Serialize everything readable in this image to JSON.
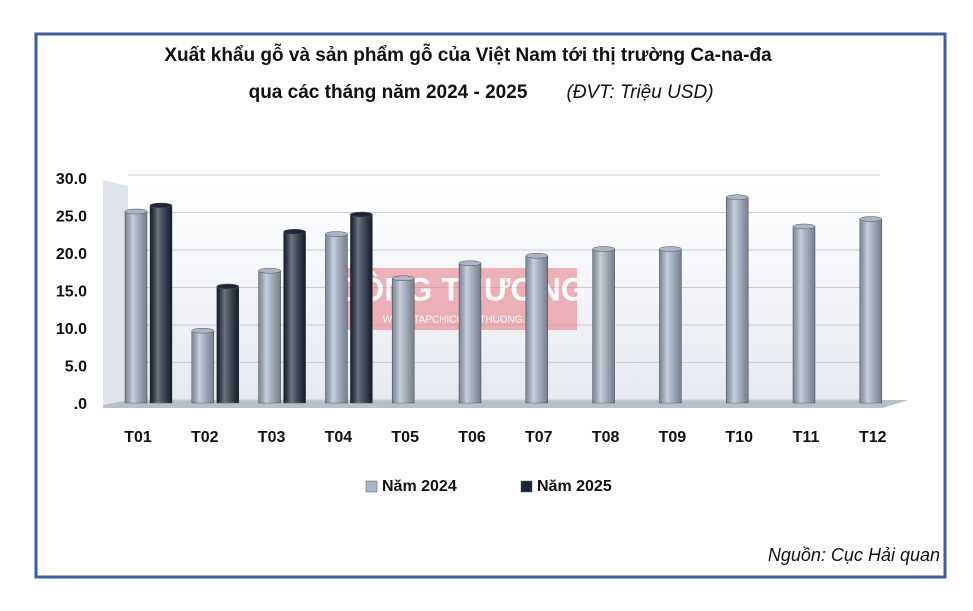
{
  "chart_data": {
    "type": "bar",
    "title": "Xuất khẩu gỗ và sản phẩm gỗ của Việt Nam tới thị trường Ca-na-đa",
    "title_line2": "qua các tháng năm 2024 - 2025",
    "subtitle": "(ĐVT: Triệu USD)",
    "source": "Nguồn: Cục Hải quan",
    "watermark": "CÔNG THƯƠNG",
    "watermark_url": "WWW.TAPCHICONGTHUONG.VN",
    "categories": [
      "T01",
      "T02",
      "T03",
      "T04",
      "T05",
      "T06",
      "T07",
      "T08",
      "T09",
      "T10",
      "T11",
      "T12"
    ],
    "series": [
      {
        "name": "Năm 2024",
        "color": "#aab5c9",
        "values": [
          25.8,
          9.9,
          17.9,
          22.8,
          16.9,
          18.9,
          19.9,
          20.8,
          20.8,
          27.7,
          23.8,
          24.8
        ]
      },
      {
        "name": "Năm 2025",
        "color": "#1d2639",
        "values": [
          26.6,
          15.8,
          23.1,
          25.4,
          null,
          null,
          null,
          null,
          null,
          null,
          null,
          null
        ]
      }
    ],
    "ylim": [
      0,
      30
    ],
    "yticks": [
      {
        "value": 0,
        "label": ".0"
      },
      {
        "value": 5,
        "label": "5.0"
      },
      {
        "value": 10,
        "label": "10.0"
      },
      {
        "value": 15,
        "label": "15.0"
      },
      {
        "value": 20,
        "label": "20.0"
      },
      {
        "value": 25,
        "label": "25.0"
      },
      {
        "value": 30,
        "label": "30.0"
      }
    ],
    "grid": true
  }
}
